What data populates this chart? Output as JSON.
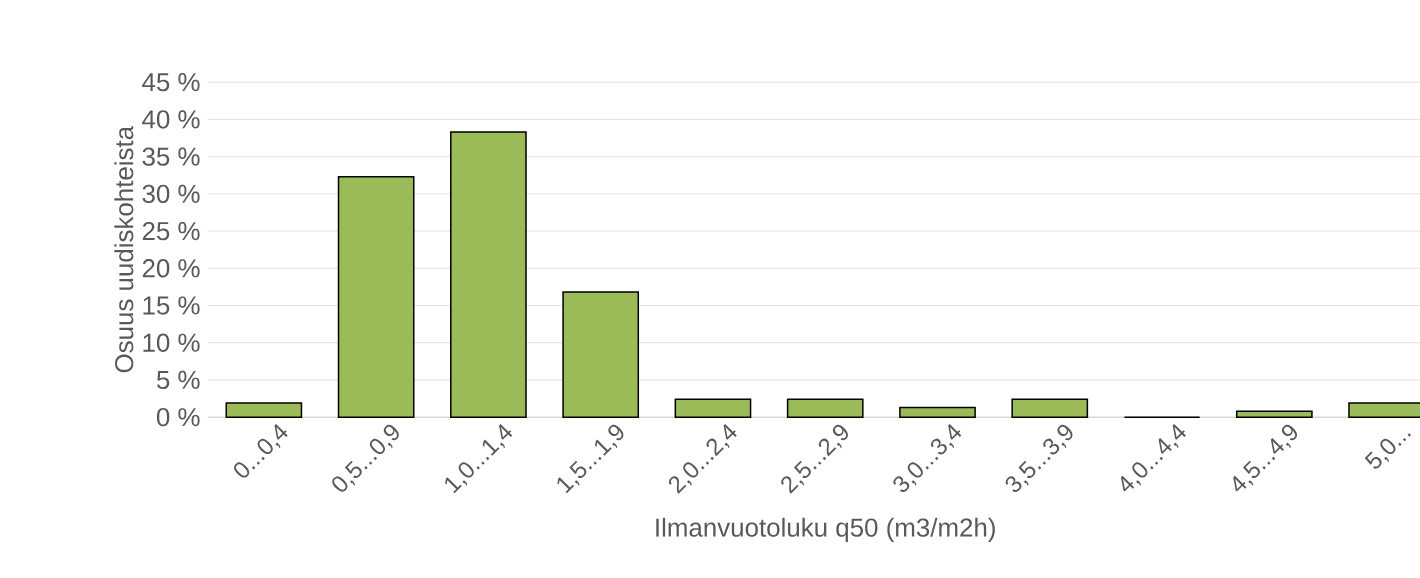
{
  "chart_data": {
    "type": "bar",
    "xlabel": "Ilmanvuotoluku q50 (m3/m2h)",
    "ylabel": "Osuus uudiskohteista",
    "categories": [
      "0...0,4",
      "0,5...0,9",
      "1,0...1,4",
      "1,5...1,9",
      "2,0...2,4",
      "2,5...2,9",
      "3,0...3,4",
      "3,5...3,9",
      "4,0...4,4",
      "4,5...4,9",
      "5,0..."
    ],
    "values": [
      1.9,
      32.3,
      38.3,
      16.8,
      2.4,
      2.4,
      1.3,
      2.4,
      0,
      0.8,
      1.9
    ],
    "color": "#9bbb59",
    "ylim": [
      0,
      45
    ],
    "yticks": [
      {
        "value": 0,
        "label": "0 %"
      },
      {
        "value": 5,
        "label": "5 %"
      },
      {
        "value": 10,
        "label": "10 %"
      },
      {
        "value": 15,
        "label": "15 %"
      },
      {
        "value": 20,
        "label": "20 %"
      },
      {
        "value": 25,
        "label": "25 %"
      },
      {
        "value": 30,
        "label": "30 %"
      },
      {
        "value": 35,
        "label": "35 %"
      },
      {
        "value": 40,
        "label": "40 %"
      },
      {
        "value": 45,
        "label": "45 %"
      }
    ],
    "grid": "y"
  }
}
